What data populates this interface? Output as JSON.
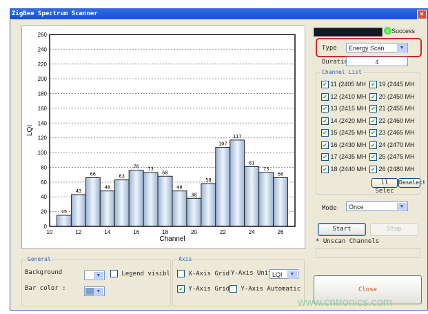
{
  "window": {
    "title": "ZigBee Spectrum Scanner",
    "close": "×"
  },
  "status": {
    "text": "Success",
    "color": "#22cc22"
  },
  "type": {
    "label": "Type",
    "value": "Energy Scan"
  },
  "duration": {
    "label": "Duratio",
    "value": "4"
  },
  "channel_list": {
    "title": "Channel List",
    "items": [
      {
        "label": "11 (2405 MH",
        "checked": true
      },
      {
        "label": "19 (2445 MH",
        "checked": true
      },
      {
        "label": "12 (2410 MH",
        "checked": true
      },
      {
        "label": "20 (2450 MH",
        "checked": true
      },
      {
        "label": "13 (2415 MH",
        "checked": true
      },
      {
        "label": "21 (2455 MH",
        "checked": true
      },
      {
        "label": "14 (2420 MH",
        "checked": true
      },
      {
        "label": "22 (2460 MH",
        "checked": true
      },
      {
        "label": "15 (2425 MH",
        "checked": true
      },
      {
        "label": "23 (2465 MH",
        "checked": true
      },
      {
        "label": "16 (2430 MH",
        "checked": true
      },
      {
        "label": "24 (2470 MH",
        "checked": true
      },
      {
        "label": "17 (2435 MH",
        "checked": true
      },
      {
        "label": "25 (2475 MH",
        "checked": true
      },
      {
        "label": "18 (2440 MH",
        "checked": true
      },
      {
        "label": "26 (2480 MH",
        "checked": true
      }
    ],
    "select_all": "ll Selec",
    "deselect": "Deselect"
  },
  "mode": {
    "label": "Mode",
    "value": "Once"
  },
  "start": "Start",
  "stop": "Stop",
  "unscan": "* Unscan Channels",
  "close": "Close",
  "general": {
    "title": "General",
    "background": "Background",
    "bar_color": "Bar color :",
    "legend": "Legend visibl",
    "legend_checked": false,
    "bar_color_value": "#7fa0c8"
  },
  "axis": {
    "title": "Axis",
    "x_grid": "X-Axis Grid",
    "x_grid_checked": false,
    "y_unit_label": "Y-Axis Unit",
    "y_unit": "LQI",
    "y_grid": "Y-Axis Grid",
    "y_grid_checked": true,
    "y_auto": "Y-Axis Automatic",
    "y_auto_checked": false
  },
  "watermark": "www.cntronics.com",
  "chart_data": {
    "type": "bar",
    "xlabel": "Channel",
    "ylabel": "LQI",
    "xlim": [
      10,
      27
    ],
    "ylim": [
      0,
      260
    ],
    "x_ticks": [
      10,
      12,
      14,
      16,
      18,
      20,
      22,
      24,
      26
    ],
    "y_ticks": [
      0,
      20,
      40,
      60,
      80,
      100,
      120,
      140,
      160,
      180,
      200,
      220,
      240,
      260
    ],
    "grid": "y-dashed",
    "categories": [
      11,
      12,
      13,
      14,
      15,
      16,
      17,
      18,
      19,
      20,
      21,
      22,
      23,
      24,
      25,
      26
    ],
    "values": [
      15,
      43,
      66,
      48,
      63,
      76,
      73,
      68,
      48,
      38,
      58,
      107,
      117,
      81,
      73,
      66
    ]
  }
}
